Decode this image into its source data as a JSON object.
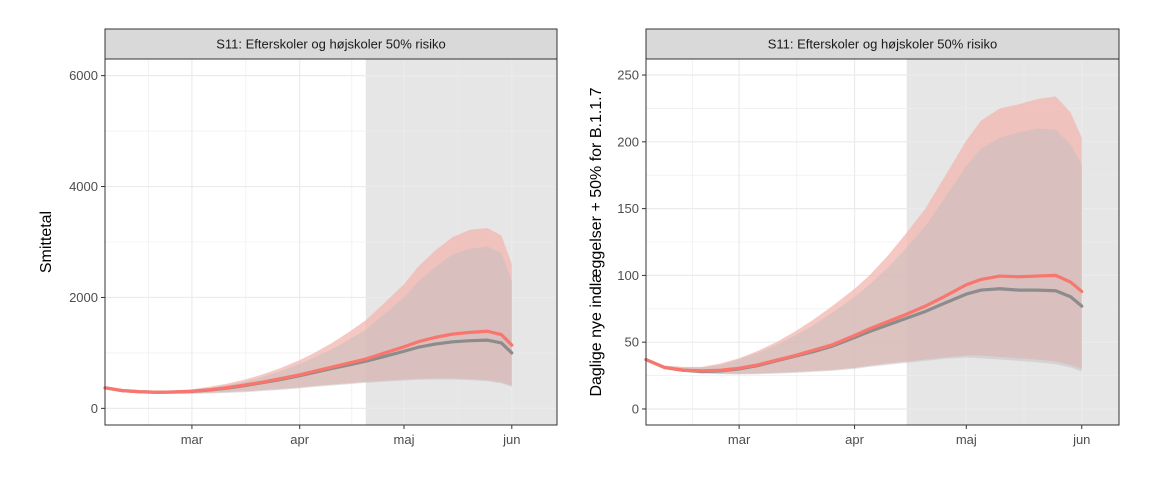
{
  "colors": {
    "scenario_line": "#f8766d",
    "scenario_band": "#f3b5b0",
    "baseline_line": "#8c8c8c",
    "baseline_band": "#bdbdbd",
    "shade": "#e6e6e6",
    "strip_bg": "#d9d9d9",
    "grid": "#ebebeb"
  },
  "chart_data": [
    {
      "type": "line",
      "panel_title": "S11: Efterskoler og højskoler 50% risiko",
      "xlabel": "",
      "ylabel": "Smittetal",
      "x_tick_labels": [
        "mar",
        "apr",
        "maj",
        "jun"
      ],
      "y_ticks": [
        0,
        2000,
        4000,
        6000
      ],
      "ylim": [
        -300,
        6300
      ],
      "xlim": [
        0,
        130
      ],
      "x_ticks": [
        25,
        56,
        86,
        117
      ],
      "shaded_from_x": 75,
      "grid": true,
      "series": [
        {
          "role": "baseline",
          "x": [
            0,
            5,
            10,
            15,
            20,
            25,
            30,
            35,
            40,
            45,
            50,
            56,
            60,
            65,
            70,
            75,
            80,
            86,
            90,
            95,
            100,
            105,
            110,
            114,
            117
          ],
          "y": [
            370,
            320,
            300,
            290,
            295,
            305,
            330,
            365,
            410,
            460,
            515,
            590,
            645,
            715,
            780,
            850,
            930,
            1030,
            1100,
            1160,
            1200,
            1220,
            1230,
            1180,
            1000
          ],
          "lower": [
            370,
            310,
            285,
            270,
            262,
            262,
            268,
            278,
            290,
            310,
            330,
            360,
            385,
            410,
            435,
            460,
            480,
            500,
            515,
            520,
            520,
            510,
            490,
            450,
            390
          ],
          "upper": [
            370,
            330,
            310,
            300,
            310,
            330,
            370,
            420,
            480,
            560,
            660,
            800,
            910,
            1060,
            1230,
            1420,
            1680,
            2000,
            2280,
            2550,
            2780,
            2880,
            2920,
            2800,
            2300
          ]
        },
        {
          "role": "scenario",
          "x": [
            0,
            5,
            10,
            15,
            20,
            25,
            30,
            35,
            40,
            45,
            50,
            56,
            60,
            65,
            70,
            75,
            80,
            86,
            90,
            95,
            100,
            105,
            110,
            114,
            117
          ],
          "y": [
            370,
            320,
            300,
            290,
            296,
            308,
            335,
            372,
            420,
            470,
            530,
            605,
            665,
            740,
            815,
            890,
            990,
            1110,
            1200,
            1280,
            1340,
            1370,
            1390,
            1330,
            1140
          ],
          "lower": [
            370,
            312,
            290,
            276,
            270,
            272,
            280,
            292,
            306,
            326,
            346,
            376,
            402,
            428,
            452,
            478,
            498,
            520,
            535,
            540,
            540,
            530,
            510,
            470,
            410
          ],
          "upper": [
            370,
            332,
            316,
            310,
            322,
            345,
            390,
            445,
            515,
            605,
            715,
            870,
            995,
            1170,
            1370,
            1590,
            1880,
            2240,
            2550,
            2850,
            3090,
            3220,
            3250,
            3120,
            2600
          ]
        }
      ]
    },
    {
      "type": "line",
      "panel_title": "S11: Efterskoler og højskoler 50% risiko",
      "xlabel": "",
      "ylabel": "Daglige nye indlæggelser + 50% for B.1.1.7",
      "x_tick_labels": [
        "mar",
        "apr",
        "maj",
        "jun"
      ],
      "y_ticks": [
        0,
        50,
        100,
        150,
        200,
        250
      ],
      "ylim": [
        -12,
        262
      ],
      "xlim": [
        0,
        127
      ],
      "x_ticks": [
        25,
        56,
        86,
        117
      ],
      "shaded_from_x": 70,
      "grid": true,
      "series": [
        {
          "role": "baseline",
          "x": [
            0,
            5,
            10,
            15,
            20,
            25,
            30,
            35,
            40,
            45,
            50,
            56,
            60,
            65,
            70,
            75,
            80,
            86,
            90,
            95,
            100,
            105,
            110,
            114,
            117
          ],
          "y": [
            37,
            31,
            29,
            28,
            28.5,
            30,
            32.5,
            36,
            39.5,
            43,
            47,
            53.5,
            58,
            63,
            68,
            73,
            79,
            86,
            89,
            90,
            89,
            89,
            88.5,
            84,
            77
          ],
          "lower": [
            37,
            30,
            28,
            26.5,
            26,
            25.8,
            26,
            26.5,
            27,
            27.8,
            28.5,
            30,
            31.5,
            33,
            34.5,
            36,
            37.5,
            38.5,
            38,
            37,
            36,
            35,
            33.5,
            31,
            28
          ],
          "upper": [
            37,
            32,
            31,
            31,
            33,
            37,
            42,
            48,
            55,
            63,
            72,
            84,
            93,
            106,
            121,
            137,
            157,
            182,
            195,
            203,
            207,
            210,
            209,
            198,
            183
          ]
        },
        {
          "role": "scenario",
          "x": [
            0,
            5,
            10,
            15,
            20,
            25,
            30,
            35,
            40,
            45,
            50,
            56,
            60,
            65,
            70,
            75,
            80,
            86,
            90,
            95,
            100,
            105,
            110,
            114,
            117
          ],
          "y": [
            37,
            31,
            29,
            28.5,
            29,
            30.5,
            33,
            36.5,
            40,
            44,
            48,
            55,
            60,
            65.5,
            71,
            77,
            84,
            93,
            97,
            99.5,
            99,
            99.5,
            100,
            95,
            88
          ],
          "lower": [
            37,
            30.5,
            28.5,
            27,
            26.5,
            26.3,
            26.5,
            27,
            27.6,
            28.4,
            29.2,
            30.8,
            32.3,
            34,
            35.5,
            37,
            38.5,
            40,
            40,
            39,
            38,
            37,
            35.5,
            33,
            30
          ],
          "upper": [
            37,
            32.5,
            31.5,
            31.5,
            34,
            38,
            43.5,
            50,
            58,
            67,
            77,
            90,
            100,
            115,
            132,
            150,
            173,
            201,
            216,
            225,
            228,
            232,
            234,
            222,
            203
          ]
        }
      ]
    }
  ]
}
